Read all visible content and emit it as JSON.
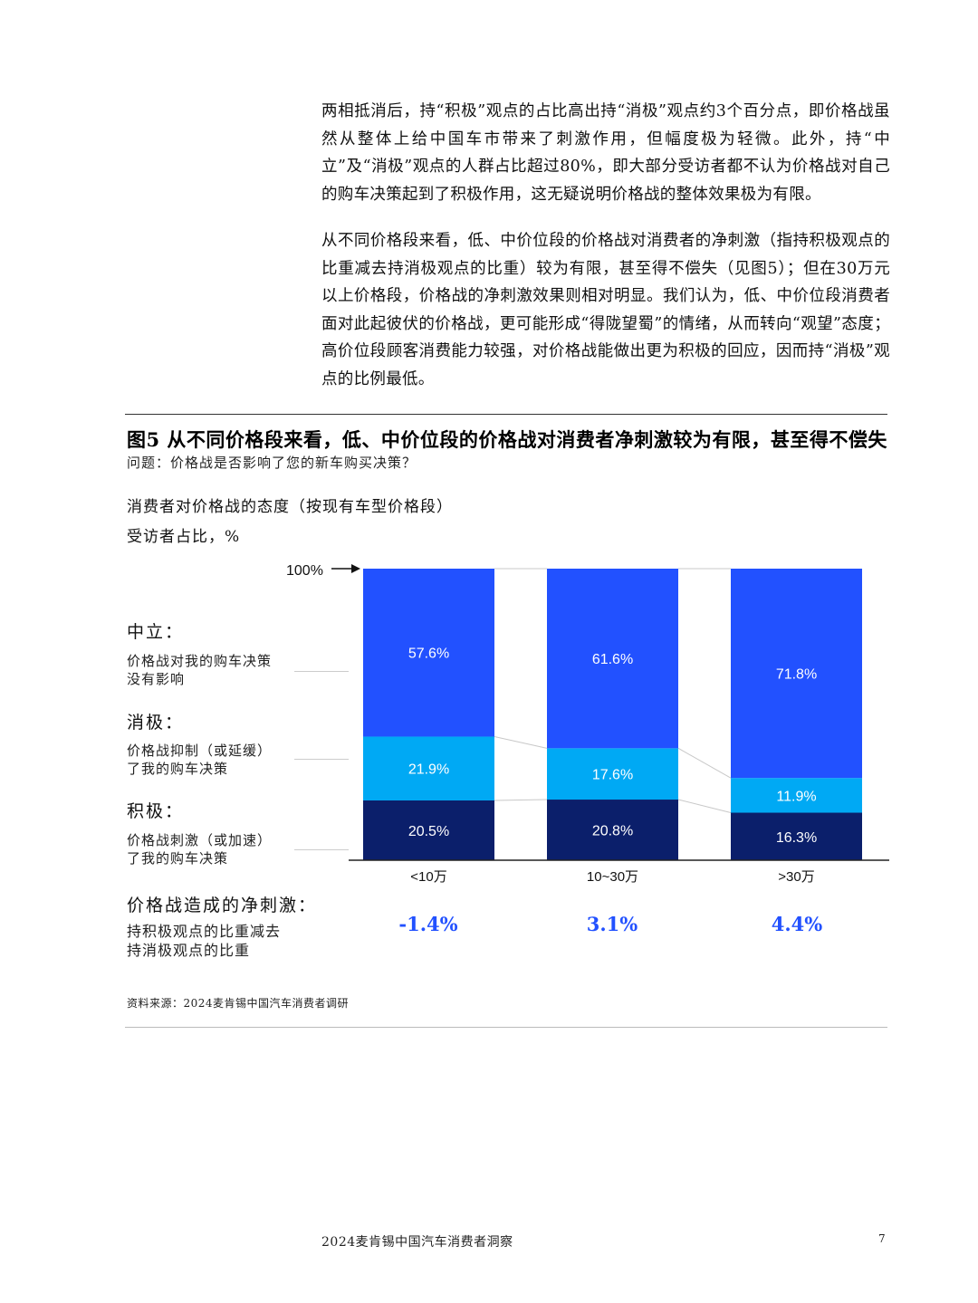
{
  "body_text": {
    "paragraph_1": "两相抵消后，持“积极”观点的占比高出持“消极”观点约3个百分点，即价格战虽然从整体上给中国车市带来了刺激作用，但幅度极为轻微。此外，持“中立”及“消极”观点的人群占比超过80%，即大部分受访者都不认为价格战对自己的购车决策起到了积极作用，这无疑说明价格战的整体效果极为有限。",
    "paragraph_2": "从不同价格段来看，低、中价位段的价格战对消费者的净刺激（指持积极观点的比重减去持消极观点的比重）较为有限，甚至得不偿失（见图5）；但在30万元以上价格段，价格战的净刺激效果则相对明显。我们认为，低、中价位段消费者面对此起彼伏的价格战，更可能形成“得陇望蜀”的情绪，从而转向“观望”态度；高价位段顾客消费能力较强，对价格战能做出更为积极的回应，因而持“消极”观点的比例最低。"
  },
  "figure": {
    "title": "图5 从不同价格段来看，低、中价位段的价格战对消费者净刺激较为有限，甚至得不偿失",
    "question": "问题：价格战是否影响了您的新车购买决策？",
    "chart_title": "消费者对价格战的态度（按现有车型价格段）",
    "unit_label": "受访者占比，%",
    "hundred_label": "100%",
    "categories_legend": [
      {
        "head": "中立：",
        "desc_line1": "价格战对我的购车决策",
        "desc_line2": "没有影响"
      },
      {
        "head": "消极：",
        "desc_line1": "价格战抑制（或延缓）",
        "desc_line2": "了我的购车决策"
      },
      {
        "head": "积极：",
        "desc_line1": "价格战刺激（或加速）",
        "desc_line2": "了我的购车决策"
      }
    ],
    "net_stimulus": {
      "head": "价格战造成的净刺激：",
      "desc_line1": "持积极观点的比重减去",
      "desc_line2": "持消极观点的比重",
      "values": [
        "-1.4%",
        "3.1%",
        "4.4%"
      ]
    },
    "source": "资料来源：2024麦肯锡中国汽车消费者调研"
  },
  "chart_data": {
    "type": "bar",
    "stacked": true,
    "categories": [
      "<10万",
      "10~30万",
      ">30万"
    ],
    "series": [
      {
        "name": "积极",
        "values": [
          20.5,
          20.8,
          16.3
        ],
        "labels": [
          "20.5%",
          "20.8%",
          "16.3%"
        ],
        "color": "#0b1f6b"
      },
      {
        "name": "消极",
        "values": [
          21.9,
          17.6,
          11.9
        ],
        "labels": [
          "21.9%",
          "17.6%",
          "11.9%"
        ],
        "color": "#00a9f4"
      },
      {
        "name": "中立",
        "values": [
          57.6,
          61.6,
          71.8
        ],
        "labels": [
          "57.6%",
          "61.6%",
          "71.8%"
        ],
        "color": "#2251ff"
      }
    ],
    "ylim": [
      0,
      100
    ],
    "grid": false,
    "legend": "left"
  },
  "footer": {
    "title": "2024麦肯锡中国汽车消费者洞察",
    "page": "7"
  }
}
